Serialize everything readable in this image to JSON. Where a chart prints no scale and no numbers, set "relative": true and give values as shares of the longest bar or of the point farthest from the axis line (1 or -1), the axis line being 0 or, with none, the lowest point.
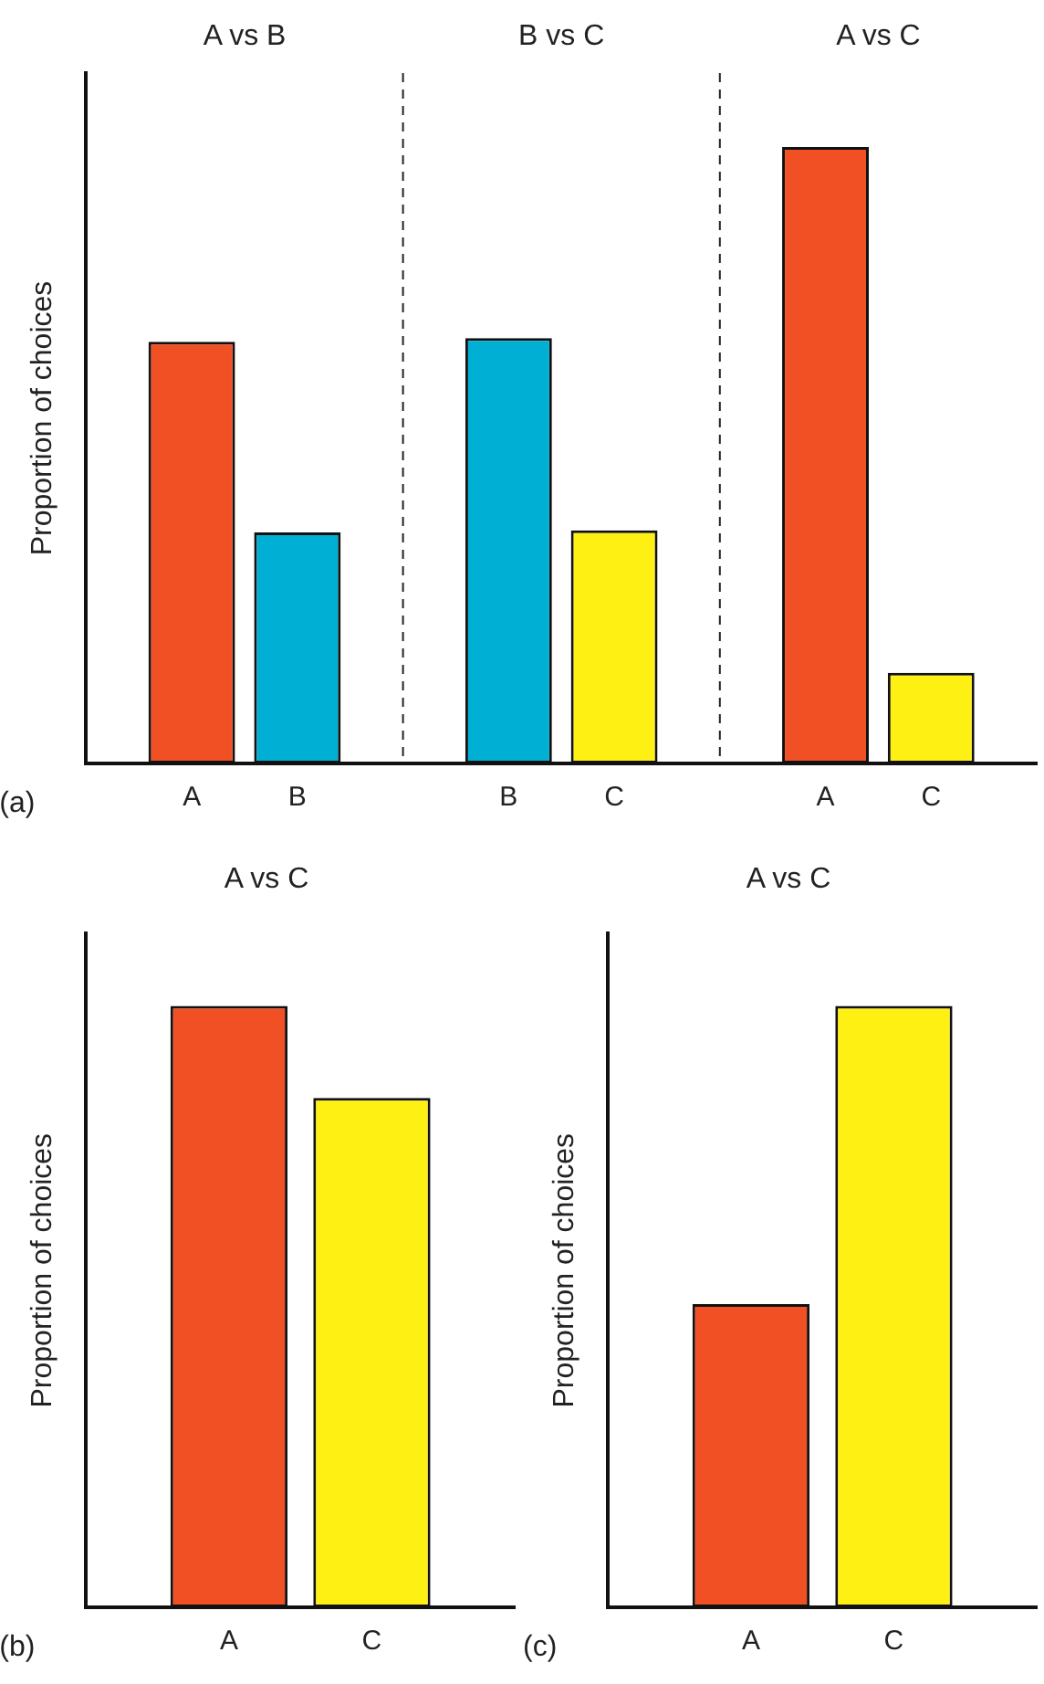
{
  "chart_data": [
    {
      "type": "bar",
      "relative": true,
      "ylabel": "Proportion of choices",
      "categories": [
        "A",
        "B",
        "B",
        "C",
        "A",
        "C"
      ],
      "values": [
        0.684,
        0.375,
        0.69,
        0.378,
        1,
        0.147
      ],
      "colors": [
        "#f05023",
        "#00b0d4",
        "#00b0d4",
        "#fff014",
        "#f05023",
        "#fff014"
      ],
      "annotations": [
        "A vs B",
        "B vs C",
        "A vs C",
        "(a)"
      ],
      "grid": false,
      "legend": false
    },
    {
      "type": "bar",
      "relative": true,
      "title": "A vs C",
      "ylabel": "Proportion of choices",
      "categories": [
        "A",
        "C"
      ],
      "values": [
        1,
        0.847
      ],
      "colors": [
        "#f05023",
        "#fff014"
      ],
      "annotations": [
        "(b)"
      ],
      "grid": false,
      "legend": false
    },
    {
      "type": "bar",
      "relative": true,
      "title": "A vs C",
      "ylabel": "Proportion of choices",
      "categories": [
        "A",
        "C"
      ],
      "values": [
        0.504,
        1
      ],
      "colors": [
        "#f05023",
        "#fff014"
      ],
      "annotations": [
        "(c)"
      ],
      "grid": false,
      "legend": false
    }
  ]
}
